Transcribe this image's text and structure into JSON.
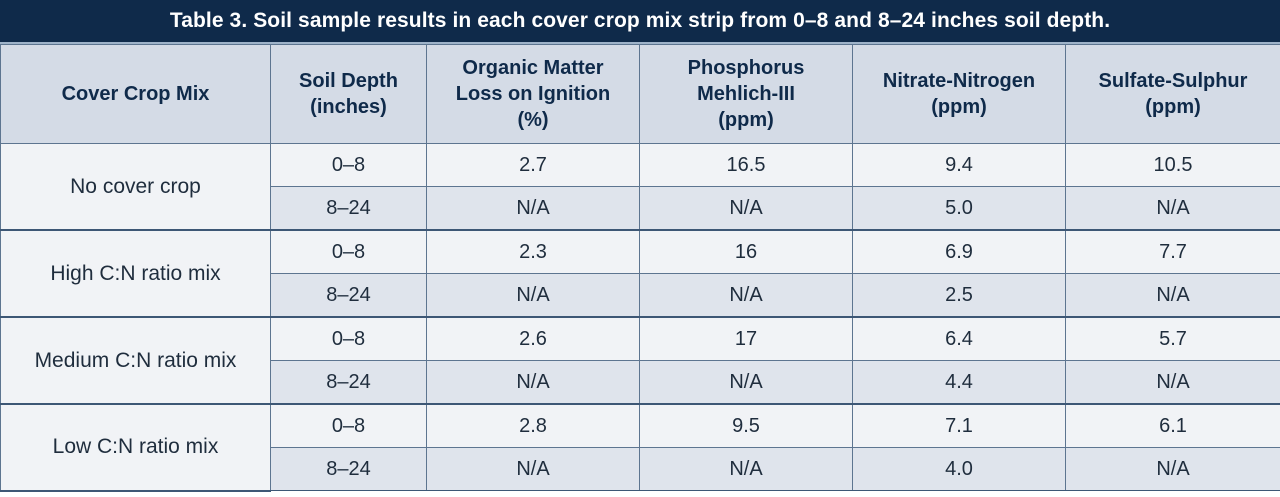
{
  "caption": "Table 3. Soil sample results in each cover crop mix strip from 0–8 and 8–24 inches soil depth.",
  "headers": {
    "cover_crop_mix": [
      "Cover Crop Mix"
    ],
    "soil_depth": [
      "Soil Depth",
      "(inches)"
    ],
    "organic_matter": [
      "Organic Matter",
      "Loss on Ignition",
      "(%)"
    ],
    "phosphorus": [
      "Phosphorus",
      "Mehlich-III",
      "(ppm)"
    ],
    "nitrate": [
      "Nitrate-Nitrogen",
      "(ppm)"
    ],
    "sulfate": [
      "Sulfate-Sulphur",
      "(ppm)"
    ]
  },
  "groups": [
    {
      "mix": "No cover crop",
      "rows": [
        {
          "depth": "0–8",
          "om": "2.7",
          "p": "16.5",
          "no3": "9.4",
          "s": "10.5"
        },
        {
          "depth": "8–24",
          "om": "N/A",
          "p": "N/A",
          "no3": "5.0",
          "s": "N/A"
        }
      ]
    },
    {
      "mix": "High C:N ratio mix",
      "rows": [
        {
          "depth": "0–8",
          "om": "2.3",
          "p": "16",
          "no3": "6.9",
          "s": "7.7"
        },
        {
          "depth": "8–24",
          "om": "N/A",
          "p": "N/A",
          "no3": "2.5",
          "s": "N/A"
        }
      ]
    },
    {
      "mix": "Medium C:N ratio mix",
      "rows": [
        {
          "depth": "0–8",
          "om": "2.6",
          "p": "17",
          "no3": "6.4",
          "s": "5.7"
        },
        {
          "depth": "8–24",
          "om": "N/A",
          "p": "N/A",
          "no3": "4.4",
          "s": "N/A"
        }
      ]
    },
    {
      "mix": "Low C:N ratio mix",
      "rows": [
        {
          "depth": "0–8",
          "om": "2.8",
          "p": "9.5",
          "no3": "7.1",
          "s": "6.1"
        },
        {
          "depth": "8–24",
          "om": "N/A",
          "p": "N/A",
          "no3": "4.0",
          "s": "N/A"
        }
      ]
    }
  ],
  "colors": {
    "caption_bg": "#0f2a4a",
    "header_bg": "#d4dbe6",
    "row_light": "#f1f3f6",
    "row_dark": "#dfe4ec",
    "border": "#5d7590"
  }
}
